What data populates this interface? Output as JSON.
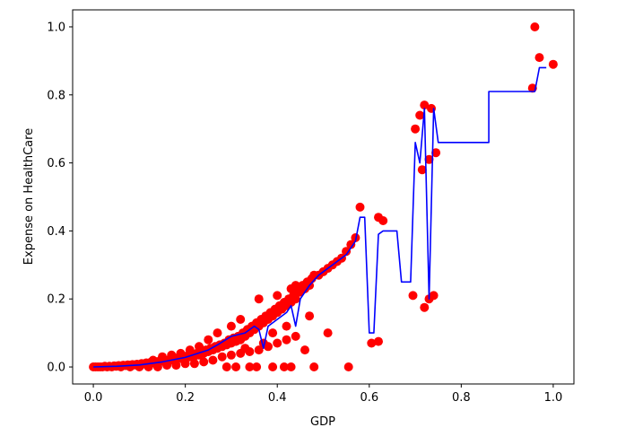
{
  "chart_data": {
    "type": "scatter",
    "title": "",
    "xlabel": "GDP",
    "ylabel": "Expense on HealthCare",
    "xlim": [
      -0.045,
      1.045
    ],
    "ylim": [
      -0.05,
      1.05
    ],
    "xticks": [
      0.0,
      0.2,
      0.4,
      0.6,
      0.8,
      1.0
    ],
    "xtick_labels": [
      "0.0",
      "0.2",
      "0.4",
      "0.6",
      "0.8",
      "1.0"
    ],
    "yticks": [
      0.0,
      0.2,
      0.4,
      0.6,
      0.8,
      1.0
    ],
    "ytick_labels": [
      "0.0",
      "0.2",
      "0.4",
      "0.6",
      "0.8",
      "1.0"
    ],
    "grid": false,
    "series": [
      {
        "kind": "scatter",
        "color": "#ff0000",
        "points": [
          [
            0.0,
            0.0
          ],
          [
            0.005,
            0.0
          ],
          [
            0.01,
            0.0
          ],
          [
            0.015,
            0.0
          ],
          [
            0.02,
            0.0
          ],
          [
            0.025,
            0.002
          ],
          [
            0.03,
            0.0
          ],
          [
            0.035,
            0.002
          ],
          [
            0.04,
            0.0
          ],
          [
            0.045,
            0.003
          ],
          [
            0.05,
            0.002
          ],
          [
            0.055,
            0.004
          ],
          [
            0.06,
            0.003
          ],
          [
            0.065,
            0.005
          ],
          [
            0.07,
            0.004
          ],
          [
            0.075,
            0.006
          ],
          [
            0.08,
            0.005
          ],
          [
            0.085,
            0.007
          ],
          [
            0.09,
            0.006
          ],
          [
            0.095,
            0.008
          ],
          [
            0.1,
            0.007
          ],
          [
            0.105,
            0.01
          ],
          [
            0.11,
            0.009
          ],
          [
            0.115,
            0.012
          ],
          [
            0.12,
            0.01
          ],
          [
            0.125,
            0.014
          ],
          [
            0.13,
            0.012
          ],
          [
            0.135,
            0.016
          ],
          [
            0.14,
            0.015
          ],
          [
            0.145,
            0.018
          ],
          [
            0.15,
            0.017
          ],
          [
            0.155,
            0.02
          ],
          [
            0.16,
            0.018
          ],
          [
            0.165,
            0.022
          ],
          [
            0.17,
            0.02
          ],
          [
            0.175,
            0.025
          ],
          [
            0.18,
            0.022
          ],
          [
            0.185,
            0.028
          ],
          [
            0.19,
            0.025
          ],
          [
            0.195,
            0.03
          ],
          [
            0.2,
            0.028
          ],
          [
            0.205,
            0.033
          ],
          [
            0.21,
            0.03
          ],
          [
            0.215,
            0.036
          ],
          [
            0.22,
            0.032
          ],
          [
            0.225,
            0.04
          ],
          [
            0.23,
            0.035
          ],
          [
            0.235,
            0.045
          ],
          [
            0.24,
            0.04
          ],
          [
            0.245,
            0.05
          ],
          [
            0.25,
            0.045
          ],
          [
            0.255,
            0.055
          ],
          [
            0.26,
            0.05
          ],
          [
            0.265,
            0.06
          ],
          [
            0.27,
            0.055
          ],
          [
            0.275,
            0.065
          ],
          [
            0.28,
            0.06
          ],
          [
            0.285,
            0.07
          ],
          [
            0.29,
            0.065
          ],
          [
            0.295,
            0.08
          ],
          [
            0.3,
            0.07
          ],
          [
            0.305,
            0.085
          ],
          [
            0.31,
            0.075
          ],
          [
            0.315,
            0.09
          ],
          [
            0.32,
            0.08
          ],
          [
            0.325,
            0.1
          ],
          [
            0.33,
            0.09
          ],
          [
            0.335,
            0.11
          ],
          [
            0.34,
            0.1
          ],
          [
            0.345,
            0.12
          ],
          [
            0.35,
            0.11
          ],
          [
            0.355,
            0.13
          ],
          [
            0.36,
            0.12
          ],
          [
            0.365,
            0.14
          ],
          [
            0.37,
            0.13
          ],
          [
            0.375,
            0.15
          ],
          [
            0.38,
            0.14
          ],
          [
            0.385,
            0.16
          ],
          [
            0.39,
            0.15
          ],
          [
            0.395,
            0.17
          ],
          [
            0.4,
            0.16
          ],
          [
            0.405,
            0.18
          ],
          [
            0.41,
            0.17
          ],
          [
            0.415,
            0.19
          ],
          [
            0.42,
            0.18
          ],
          [
            0.425,
            0.2
          ],
          [
            0.43,
            0.19
          ],
          [
            0.435,
            0.21
          ],
          [
            0.44,
            0.2
          ],
          [
            0.445,
            0.23
          ],
          [
            0.45,
            0.22
          ],
          [
            0.455,
            0.24
          ],
          [
            0.46,
            0.23
          ],
          [
            0.465,
            0.25
          ],
          [
            0.47,
            0.24
          ],
          [
            0.475,
            0.26
          ],
          [
            0.48,
            0.27
          ],
          [
            0.49,
            0.27
          ],
          [
            0.5,
            0.28
          ],
          [
            0.51,
            0.29
          ],
          [
            0.52,
            0.3
          ],
          [
            0.53,
            0.31
          ],
          [
            0.54,
            0.32
          ],
          [
            0.55,
            0.34
          ],
          [
            0.56,
            0.36
          ],
          [
            0.57,
            0.38
          ],
          [
            0.58,
            0.47
          ],
          [
            0.605,
            0.07
          ],
          [
            0.62,
            0.075
          ],
          [
            0.62,
            0.44
          ],
          [
            0.63,
            0.43
          ],
          [
            0.695,
            0.21
          ],
          [
            0.7,
            0.7
          ],
          [
            0.71,
            0.74
          ],
          [
            0.715,
            0.58
          ],
          [
            0.72,
            0.77
          ],
          [
            0.72,
            0.175
          ],
          [
            0.73,
            0.2
          ],
          [
            0.73,
            0.61
          ],
          [
            0.735,
            0.76
          ],
          [
            0.74,
            0.21
          ],
          [
            0.745,
            0.63
          ],
          [
            0.955,
            0.82
          ],
          [
            0.96,
            1.0
          ],
          [
            0.97,
            0.91
          ],
          [
            1.0,
            0.89
          ],
          [
            0.06,
            0.0
          ],
          [
            0.08,
            0.0
          ],
          [
            0.1,
            0.0
          ],
          [
            0.12,
            0.0
          ],
          [
            0.14,
            0.0
          ],
          [
            0.16,
            0.005
          ],
          [
            0.18,
            0.005
          ],
          [
            0.2,
            0.01
          ],
          [
            0.22,
            0.01
          ],
          [
            0.24,
            0.015
          ],
          [
            0.26,
            0.02
          ],
          [
            0.28,
            0.03
          ],
          [
            0.3,
            0.035
          ],
          [
            0.32,
            0.04
          ],
          [
            0.34,
            0.045
          ],
          [
            0.36,
            0.05
          ],
          [
            0.38,
            0.06
          ],
          [
            0.4,
            0.07
          ],
          [
            0.42,
            0.08
          ],
          [
            0.44,
            0.09
          ],
          [
            0.29,
            0.0
          ],
          [
            0.31,
            0.0
          ],
          [
            0.34,
            0.0
          ],
          [
            0.355,
            0.0
          ],
          [
            0.39,
            0.0
          ],
          [
            0.415,
            0.0
          ],
          [
            0.43,
            0.0
          ],
          [
            0.48,
            0.0
          ],
          [
            0.555,
            0.0
          ],
          [
            0.46,
            0.05
          ],
          [
            0.37,
            0.07
          ],
          [
            0.33,
            0.055
          ],
          [
            0.36,
            0.2
          ],
          [
            0.4,
            0.21
          ],
          [
            0.43,
            0.23
          ],
          [
            0.44,
            0.24
          ],
          [
            0.47,
            0.15
          ],
          [
            0.51,
            0.1
          ],
          [
            0.39,
            0.1
          ],
          [
            0.42,
            0.12
          ],
          [
            0.27,
            0.1
          ],
          [
            0.3,
            0.12
          ],
          [
            0.32,
            0.14
          ],
          [
            0.25,
            0.08
          ],
          [
            0.23,
            0.06
          ],
          [
            0.21,
            0.05
          ],
          [
            0.19,
            0.04
          ],
          [
            0.17,
            0.035
          ],
          [
            0.15,
            0.03
          ],
          [
            0.13,
            0.02
          ]
        ]
      },
      {
        "kind": "line",
        "color": "#0000ff",
        "points": [
          [
            0.0,
            0.0
          ],
          [
            0.05,
            0.002
          ],
          [
            0.1,
            0.006
          ],
          [
            0.15,
            0.015
          ],
          [
            0.2,
            0.028
          ],
          [
            0.25,
            0.05
          ],
          [
            0.27,
            0.065
          ],
          [
            0.3,
            0.09
          ],
          [
            0.33,
            0.1
          ],
          [
            0.35,
            0.12
          ],
          [
            0.36,
            0.11
          ],
          [
            0.37,
            0.055
          ],
          [
            0.38,
            0.12
          ],
          [
            0.4,
            0.14
          ],
          [
            0.42,
            0.16
          ],
          [
            0.43,
            0.18
          ],
          [
            0.44,
            0.12
          ],
          [
            0.45,
            0.2
          ],
          [
            0.47,
            0.24
          ],
          [
            0.49,
            0.27
          ],
          [
            0.51,
            0.29
          ],
          [
            0.53,
            0.31
          ],
          [
            0.55,
            0.33
          ],
          [
            0.57,
            0.37
          ],
          [
            0.58,
            0.44
          ],
          [
            0.59,
            0.44
          ],
          [
            0.6,
            0.1
          ],
          [
            0.61,
            0.1
          ],
          [
            0.62,
            0.39
          ],
          [
            0.63,
            0.4
          ],
          [
            0.66,
            0.4
          ],
          [
            0.67,
            0.25
          ],
          [
            0.69,
            0.25
          ],
          [
            0.7,
            0.66
          ],
          [
            0.71,
            0.6
          ],
          [
            0.72,
            0.76
          ],
          [
            0.73,
            0.2
          ],
          [
            0.74,
            0.76
          ],
          [
            0.75,
            0.66
          ],
          [
            0.86,
            0.66
          ],
          [
            0.86,
            0.81
          ],
          [
            0.96,
            0.81
          ],
          [
            0.97,
            0.88
          ],
          [
            0.985,
            0.88
          ]
        ]
      }
    ]
  }
}
